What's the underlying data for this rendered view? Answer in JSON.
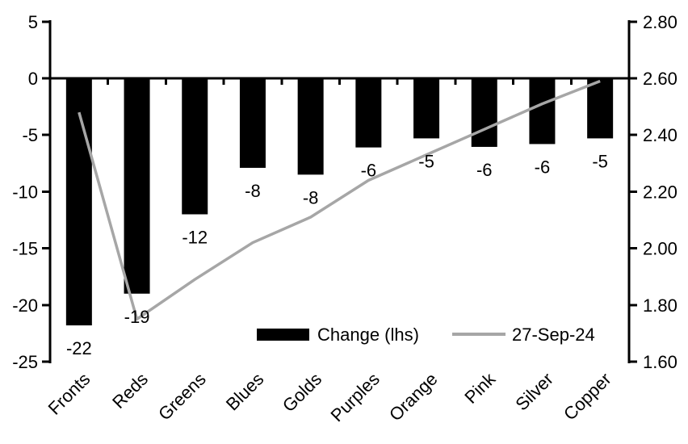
{
  "chart_data": {
    "type": "combo-bar-line",
    "title": "",
    "categories": [
      "Fronts",
      "Reds",
      "Greens",
      "Blues",
      "Golds",
      "Purples",
      "Orange",
      "Pink",
      "Silver",
      "Copper"
    ],
    "series": [
      {
        "name": "Change (lhs)",
        "type": "bar",
        "axis": "left",
        "color": "#000000",
        "values": [
          -22,
          -19,
          -12,
          -8,
          -8,
          -6,
          -5,
          -6,
          -6,
          -5
        ],
        "values_precise": [
          -21.8,
          -19,
          -12,
          -7.9,
          -8.5,
          -6.1,
          -5.3,
          -6.05,
          -5.8,
          -5.3
        ],
        "data_labels": [
          "-22",
          "-19",
          "-12",
          "-8",
          "-8",
          "-6",
          "-5",
          "-6",
          "-6",
          "-5"
        ]
      },
      {
        "name": "27-Sep-24",
        "type": "line",
        "axis": "right",
        "color": "#a6a6a6",
        "values": [
          2.48,
          1.75,
          1.89,
          2.02,
          2.11,
          2.24,
          2.33,
          2.42,
          2.51,
          2.59
        ]
      }
    ],
    "left_axis": {
      "min": -25,
      "max": 5,
      "tick_labels": [
        "5",
        "0",
        "-5",
        "-10",
        "-15",
        "-20",
        "-25"
      ]
    },
    "right_axis": {
      "min": 1.6,
      "max": 2.8,
      "zero_line_value": 2.6,
      "tick_labels": [
        "2.80",
        "2.60",
        "2.40",
        "2.20",
        "2.00",
        "1.80",
        "1.60"
      ]
    },
    "legend": {
      "position": "bottom-inside",
      "items": [
        {
          "label": "Change (lhs)",
          "swatch": "bar",
          "color": "#000000"
        },
        {
          "label": "27-Sep-24",
          "swatch": "line",
          "color": "#a6a6a6"
        }
      ]
    },
    "grid": false,
    "x_label_rotation": -45
  },
  "colors": {
    "background": "#ffffff",
    "text": "#000000",
    "bar": "#000000",
    "line": "#a6a6a6"
  }
}
